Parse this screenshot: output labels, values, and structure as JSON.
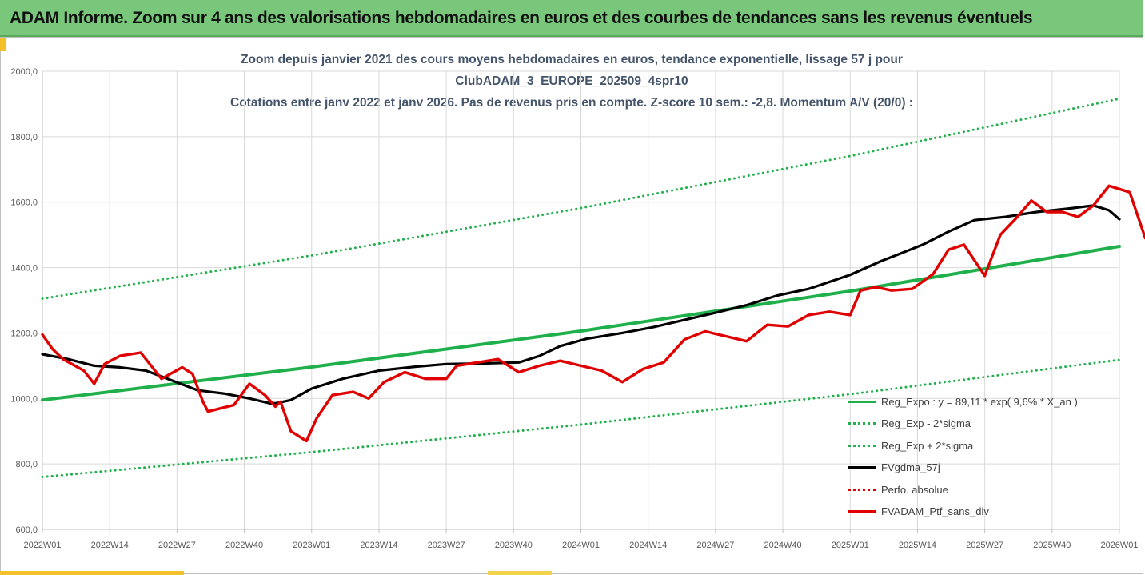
{
  "header": {
    "title": "ADAM Informe. Zoom sur 4 ans des valorisations hebdomadaires en euros et des courbes de tendances sans les revenus éventuels"
  },
  "chart_data": {
    "type": "line",
    "title_lines": [
      "Zoom depuis janvier 2021 des cours moyens hebdomadaires  en euros, tendance exponentielle, lissage 57 j pour",
      "ClubADAM_3_EUROPE_202509_4spr10",
      "Cotations entre janv 2022 et janv 2026. Pas de revenus pris en compte. Z-score 10 sem.: -2,8. Momentum A/V (20/0) :"
    ],
    "ylim": [
      600,
      2000
    ],
    "y_ticks": [
      "600,0",
      "800,0",
      "1000,0",
      "1200,0",
      "1400,0",
      "1600,0",
      "1800,0",
      "2000,0"
    ],
    "x_ticks": [
      "2022W01",
      "2022W14",
      "2022W27",
      "2022W40",
      "2023W01",
      "2023W14",
      "2023W27",
      "2023W40",
      "2024W01",
      "2024W14",
      "2024W27",
      "2024W40",
      "2025W01",
      "2025W14",
      "2025W27",
      "2025W40",
      "2026W01"
    ],
    "grid": true,
    "legend_position": "bottom-right",
    "series": [
      {
        "name": "Reg_Expo : y = 89,11 * exp( 9,6% *  X_an )",
        "color": "#1fb04b",
        "style": "solid",
        "points": [
          [
            0,
            995
          ],
          [
            52,
            1096
          ],
          [
            104,
            1206
          ],
          [
            156,
            1328
          ],
          [
            208,
            1465
          ]
        ]
      },
      {
        "name": "Reg_Exp - 2*sigma",
        "color": "#1fb04b",
        "style": "dotted",
        "points": [
          [
            0,
            760
          ],
          [
            52,
            836
          ],
          [
            104,
            920
          ],
          [
            156,
            1013
          ],
          [
            208,
            1118
          ]
        ]
      },
      {
        "name": "Reg_Exp + 2*sigma",
        "color": "#1fb04b",
        "style": "dotted",
        "points": [
          [
            0,
            1305
          ],
          [
            52,
            1437
          ],
          [
            104,
            1582
          ],
          [
            156,
            1741
          ],
          [
            208,
            1916
          ]
        ]
      },
      {
        "name": "FVgdma_57j",
        "color": "#000000",
        "style": "solid",
        "points": [
          [
            0,
            1135
          ],
          [
            5,
            1120
          ],
          [
            10,
            1100
          ],
          [
            15,
            1095
          ],
          [
            20,
            1085
          ],
          [
            25,
            1055
          ],
          [
            30,
            1025
          ],
          [
            35,
            1015
          ],
          [
            40,
            1000
          ],
          [
            44,
            985
          ],
          [
            45,
            985
          ],
          [
            48,
            995
          ],
          [
            52,
            1030
          ],
          [
            58,
            1060
          ],
          [
            65,
            1085
          ],
          [
            72,
            1097
          ],
          [
            78,
            1105
          ],
          [
            85,
            1107
          ],
          [
            92,
            1110
          ],
          [
            96,
            1130
          ],
          [
            100,
            1160
          ],
          [
            105,
            1182
          ],
          [
            112,
            1200
          ],
          [
            118,
            1218
          ],
          [
            124,
            1240
          ],
          [
            130,
            1262
          ],
          [
            136,
            1285
          ],
          [
            142,
            1315
          ],
          [
            148,
            1335
          ],
          [
            156,
            1378
          ],
          [
            162,
            1420
          ],
          [
            166,
            1445
          ],
          [
            170,
            1470
          ],
          [
            175,
            1510
          ],
          [
            180,
            1545
          ],
          [
            186,
            1555
          ],
          [
            192,
            1570
          ],
          [
            198,
            1580
          ],
          [
            203,
            1590
          ],
          [
            206,
            1575
          ],
          [
            208,
            1548
          ]
        ]
      },
      {
        "name": "Perfo. absolue",
        "color": "#e00000",
        "style": "dotted",
        "points": []
      },
      {
        "name": "FVADAM_Ptf_sans_div",
        "color": "#e00000",
        "style": "solid",
        "points": [
          [
            0,
            1195
          ],
          [
            2,
            1150
          ],
          [
            4,
            1120
          ],
          [
            8,
            1085
          ],
          [
            10,
            1045
          ],
          [
            12,
            1105
          ],
          [
            15,
            1130
          ],
          [
            19,
            1140
          ],
          [
            23,
            1060
          ],
          [
            27,
            1095
          ],
          [
            29,
            1075
          ],
          [
            31,
            990
          ],
          [
            32,
            960
          ],
          [
            35,
            972
          ],
          [
            37,
            980
          ],
          [
            40,
            1045
          ],
          [
            43,
            1010
          ],
          [
            45,
            975
          ],
          [
            46,
            990
          ],
          [
            48,
            900
          ],
          [
            51,
            870
          ],
          [
            53,
            940
          ],
          [
            56,
            1010
          ],
          [
            60,
            1020
          ],
          [
            63,
            1000
          ],
          [
            66,
            1050
          ],
          [
            70,
            1080
          ],
          [
            74,
            1060
          ],
          [
            78,
            1060
          ],
          [
            80,
            1100
          ],
          [
            84,
            1110
          ],
          [
            88,
            1120
          ],
          [
            92,
            1080
          ],
          [
            96,
            1100
          ],
          [
            100,
            1115
          ],
          [
            104,
            1100
          ],
          [
            108,
            1085
          ],
          [
            112,
            1050
          ],
          [
            116,
            1090
          ],
          [
            120,
            1110
          ],
          [
            124,
            1180
          ],
          [
            128,
            1205
          ],
          [
            132,
            1190
          ],
          [
            136,
            1175
          ],
          [
            140,
            1225
          ],
          [
            144,
            1220
          ],
          [
            148,
            1255
          ],
          [
            152,
            1265
          ],
          [
            156,
            1255
          ],
          [
            158,
            1330
          ],
          [
            161,
            1340
          ],
          [
            164,
            1330
          ],
          [
            168,
            1335
          ],
          [
            172,
            1380
          ],
          [
            175,
            1455
          ],
          [
            178,
            1470
          ],
          [
            182,
            1375
          ],
          [
            185,
            1500
          ],
          [
            188,
            1550
          ],
          [
            191,
            1605
          ],
          [
            194,
            1570
          ],
          [
            197,
            1570
          ],
          [
            200,
            1555
          ],
          [
            203,
            1590
          ],
          [
            206,
            1650
          ],
          [
            208,
            1640
          ],
          [
            210,
            1630
          ],
          [
            213,
            1490
          ]
        ]
      }
    ]
  },
  "legend": [
    {
      "label": "Reg_Expo : y = 89,11 * exp( 9,6% *  X_an )",
      "color": "#1fb04b",
      "style": "solid"
    },
    {
      "label": "Reg_Exp - 2*sigma",
      "color": "#1fb04b",
      "style": "dotted"
    },
    {
      "label": "Reg_Exp + 2*sigma",
      "color": "#1fb04b",
      "style": "dotted"
    },
    {
      "label": "FVgdma_57j",
      "color": "#000000",
      "style": "solid"
    },
    {
      "label": "Perfo. absolue",
      "color": "#e00000",
      "style": "dotted"
    },
    {
      "label": "FVADAM_Ptf_sans_div",
      "color": "#e00000",
      "style": "solid"
    }
  ]
}
